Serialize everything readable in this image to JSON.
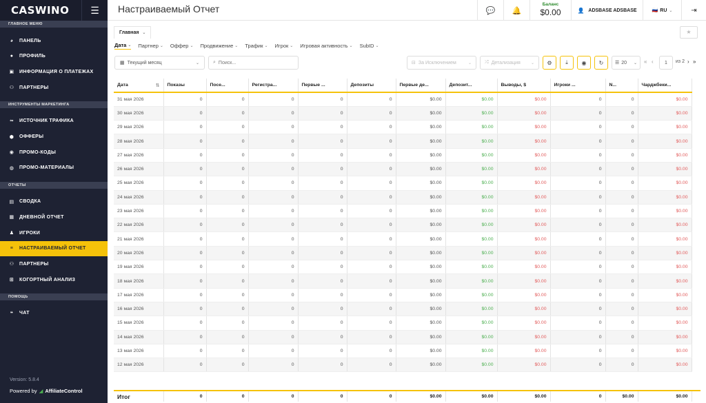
{
  "app": {
    "logo": "CASWINO",
    "version": "Version: 5.8.4",
    "powered_label": "Powered by",
    "powered_brand": "AffiliateControl"
  },
  "sidebar": {
    "sections": [
      {
        "title": "ГЛАВНОЕ МЕНЮ",
        "items": [
          {
            "label": "ПАНЕЛЬ",
            "icon": "dashboard-icon"
          },
          {
            "label": "ПРОФИЛЬ",
            "icon": "user-icon"
          },
          {
            "label": "ИНФОРМАЦИЯ О ПЛАТЕЖАХ",
            "icon": "payment-icon"
          },
          {
            "label": "ПАРТНЕРЫ",
            "icon": "users-icon"
          }
        ]
      },
      {
        "title": "ИНСТРУМЕНТЫ МАРКЕТИНГА",
        "items": [
          {
            "label": "ИСТОЧНИК ТРАФИКА",
            "icon": "link-icon"
          },
          {
            "label": "ОФФЕРЫ",
            "icon": "gift-icon"
          },
          {
            "label": "ПРОМО-КОДЫ",
            "icon": "code-icon"
          },
          {
            "label": "ПРОМО-МАТЕРИАЛЫ",
            "icon": "image-icon"
          }
        ]
      },
      {
        "title": "ОТЧЕТЫ",
        "items": [
          {
            "label": "СВОДКА",
            "icon": "chart-icon"
          },
          {
            "label": "ДНЕВНОЙ ОТЧЕТ",
            "icon": "calendar-icon"
          },
          {
            "label": "ИГРОКИ",
            "icon": "player-icon"
          },
          {
            "label": "НАСТРАИВАЕМЫЙ ОТЧЕТ",
            "icon": "sliders-icon",
            "active": true
          },
          {
            "label": "ПАРТНЕРЫ",
            "icon": "users-icon"
          },
          {
            "label": "КОГОРТНЫЙ АНАЛИЗ",
            "icon": "grid-icon"
          }
        ]
      },
      {
        "title": "ПОМОЩЬ",
        "items": [
          {
            "label": "ЧАТ",
            "icon": "chat-icon"
          }
        ]
      }
    ]
  },
  "header": {
    "title": "Настраиваемый Отчет",
    "balance_label": "Баланс",
    "balance_value": "$0.00",
    "user": "ADSBASE ADSBASE",
    "language": "RU"
  },
  "tabs": [
    {
      "label": "Главная"
    }
  ],
  "group_by": [
    "Дата",
    "Партнер",
    "Оффер",
    "Продвижение",
    "Трафик",
    "Игрок",
    "Игровая активность",
    "SubID"
  ],
  "filters": {
    "period": "Текущий месяц",
    "search_placeholder": "Поиск...",
    "exclusions": "За Исключением",
    "detail": "Детализация",
    "page_size": "20",
    "page": "1",
    "page_total": "из 2"
  },
  "table": {
    "columns": [
      "Дата",
      "Показы",
      "Посе...",
      "Регистра...",
      "Первые ...",
      "Депозиты",
      "Первые де...",
      "Депозит...",
      "Выводы, $",
      "Игроки ...",
      "N...",
      "Чарджбеки..."
    ],
    "rows": [
      [
        "31 мая 2026",
        "0",
        "0",
        "0",
        "0",
        "0",
        "$0.00",
        "$0.00",
        "$0.00",
        "0",
        "0",
        "$0.00"
      ],
      [
        "30 мая 2026",
        "0",
        "0",
        "0",
        "0",
        "0",
        "$0.00",
        "$0.00",
        "$0.00",
        "0",
        "0",
        "$0.00"
      ],
      [
        "29 мая 2026",
        "0",
        "0",
        "0",
        "0",
        "0",
        "$0.00",
        "$0.00",
        "$0.00",
        "0",
        "0",
        "$0.00"
      ],
      [
        "28 мая 2026",
        "0",
        "0",
        "0",
        "0",
        "0",
        "$0.00",
        "$0.00",
        "$0.00",
        "0",
        "0",
        "$0.00"
      ],
      [
        "27 мая 2026",
        "0",
        "0",
        "0",
        "0",
        "0",
        "$0.00",
        "$0.00",
        "$0.00",
        "0",
        "0",
        "$0.00"
      ],
      [
        "26 мая 2026",
        "0",
        "0",
        "0",
        "0",
        "0",
        "$0.00",
        "$0.00",
        "$0.00",
        "0",
        "0",
        "$0.00"
      ],
      [
        "25 мая 2026",
        "0",
        "0",
        "0",
        "0",
        "0",
        "$0.00",
        "$0.00",
        "$0.00",
        "0",
        "0",
        "$0.00"
      ],
      [
        "24 мая 2026",
        "0",
        "0",
        "0",
        "0",
        "0",
        "$0.00",
        "$0.00",
        "$0.00",
        "0",
        "0",
        "$0.00"
      ],
      [
        "23 мая 2026",
        "0",
        "0",
        "0",
        "0",
        "0",
        "$0.00",
        "$0.00",
        "$0.00",
        "0",
        "0",
        "$0.00"
      ],
      [
        "22 мая 2026",
        "0",
        "0",
        "0",
        "0",
        "0",
        "$0.00",
        "$0.00",
        "$0.00",
        "0",
        "0",
        "$0.00"
      ],
      [
        "21 мая 2026",
        "0",
        "0",
        "0",
        "0",
        "0",
        "$0.00",
        "$0.00",
        "$0.00",
        "0",
        "0",
        "$0.00"
      ],
      [
        "20 мая 2026",
        "0",
        "0",
        "0",
        "0",
        "0",
        "$0.00",
        "$0.00",
        "$0.00",
        "0",
        "0",
        "$0.00"
      ],
      [
        "19 мая 2026",
        "0",
        "0",
        "0",
        "0",
        "0",
        "$0.00",
        "$0.00",
        "$0.00",
        "0",
        "0",
        "$0.00"
      ],
      [
        "18 мая 2026",
        "0",
        "0",
        "0",
        "0",
        "0",
        "$0.00",
        "$0.00",
        "$0.00",
        "0",
        "0",
        "$0.00"
      ],
      [
        "17 мая 2026",
        "0",
        "0",
        "0",
        "0",
        "0",
        "$0.00",
        "$0.00",
        "$0.00",
        "0",
        "0",
        "$0.00"
      ],
      [
        "16 мая 2026",
        "0",
        "0",
        "0",
        "0",
        "0",
        "$0.00",
        "$0.00",
        "$0.00",
        "0",
        "0",
        "$0.00"
      ],
      [
        "15 мая 2026",
        "0",
        "0",
        "0",
        "0",
        "0",
        "$0.00",
        "$0.00",
        "$0.00",
        "0",
        "0",
        "$0.00"
      ],
      [
        "14 мая 2026",
        "0",
        "0",
        "0",
        "0",
        "0",
        "$0.00",
        "$0.00",
        "$0.00",
        "0",
        "0",
        "$0.00"
      ],
      [
        "13 мая 2026",
        "0",
        "0",
        "0",
        "0",
        "0",
        "$0.00",
        "$0.00",
        "$0.00",
        "0",
        "0",
        "$0.00"
      ],
      [
        "12 мая 2026",
        "0",
        "0",
        "0",
        "0",
        "0",
        "$0.00",
        "$0.00",
        "$0.00",
        "0",
        "0",
        "$0.00"
      ]
    ],
    "totals": [
      "Итог",
      "0",
      "0",
      "0",
      "0",
      "0",
      "$0.00",
      "$0.00",
      "$0.00",
      "0",
      "$0.00",
      "$0.00"
    ]
  },
  "colors": {
    "accent": "#f5c20a",
    "sidebar_bg": "#1e2233",
    "positive": "#4caf50",
    "negative": "#e25c5c"
  }
}
